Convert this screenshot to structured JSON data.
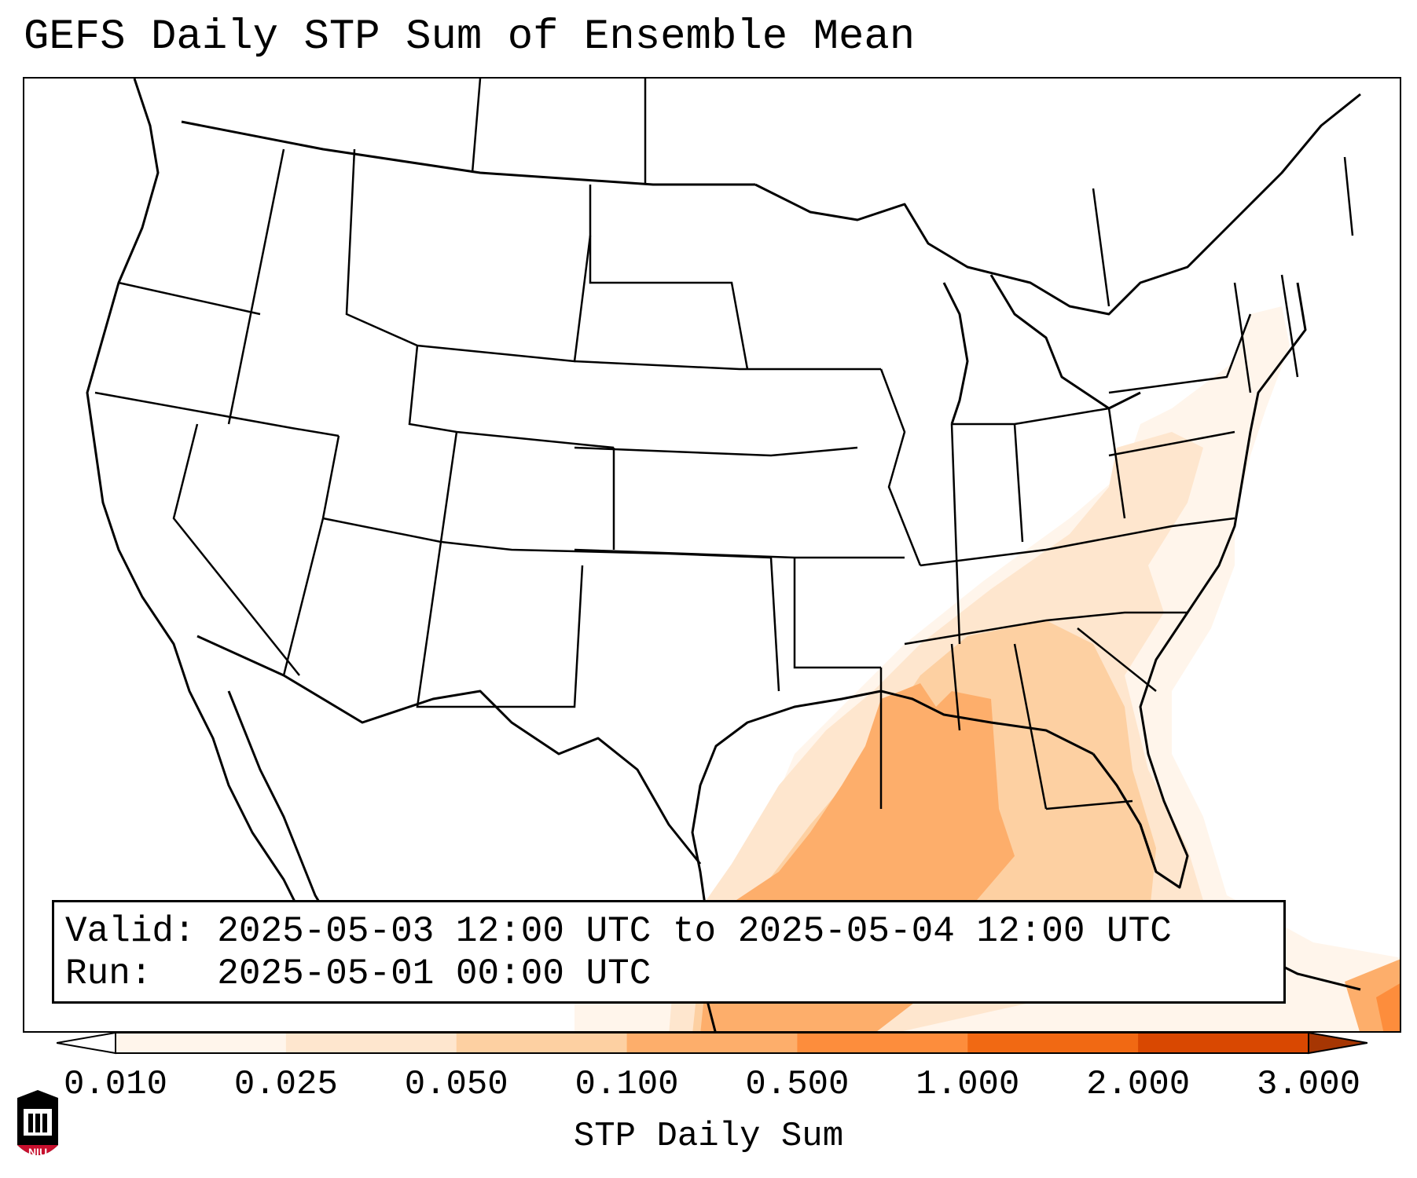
{
  "title": "GEFS Daily STP Sum of Ensemble Mean",
  "info": {
    "valid_label": "Valid:",
    "valid_value": "2025-05-03 12:00 UTC to 2025-05-04 12:00 UTC",
    "run_label": "Run:",
    "run_value": "2025-05-01 00:00 UTC"
  },
  "colorbar": {
    "label": "STP Daily Sum",
    "ticks": [
      "0.010",
      "0.025",
      "0.050",
      "0.100",
      "0.500",
      "1.000",
      "2.000",
      "3.000"
    ],
    "colors": [
      "#fff5eb",
      "#fee6ce",
      "#fdd0a2",
      "#fdae6b",
      "#fd8d3c",
      "#f16913",
      "#d94801",
      "#a63603"
    ]
  },
  "logo": {
    "text": "NIU",
    "color": "#c8102e"
  },
  "colors": {
    "land_outline": "#000000",
    "background": "#ffffff"
  }
}
